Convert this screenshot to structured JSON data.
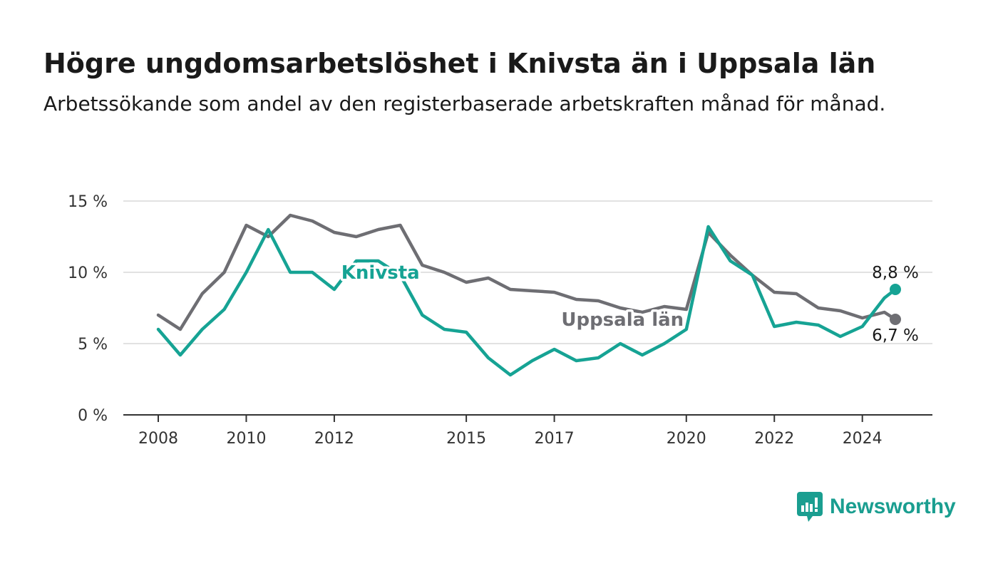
{
  "header": {
    "title": "Högre ungdomsarbetslöshet i Knivsta än i Uppsala län",
    "subtitle": "Arbetssökande som andel av den registerbaserade arbetskraften månad för månad."
  },
  "brand": {
    "name": "Newsworthy",
    "icon": "newsworthy-logo-icon",
    "color": "#1a9e90"
  },
  "chart_data": {
    "type": "line",
    "ylim": [
      0,
      15
    ],
    "yticks": [
      0,
      5,
      10,
      15
    ],
    "ytick_labels": [
      "0 %",
      "5 %",
      "10 %",
      "15 %"
    ],
    "xticks": [
      2008,
      2010,
      2012,
      2015,
      2017,
      2020,
      2022,
      2024
    ],
    "xtick_labels": [
      "2008",
      "2010",
      "2012",
      "2015",
      "2017",
      "2020",
      "2022",
      "2024"
    ],
    "grid": "horizontal",
    "series": [
      {
        "name": "Uppsala län",
        "color": "#6e6e73",
        "end_label": "6,7 %",
        "x": [
          2008.0,
          2008.5,
          2009.0,
          2009.5,
          2010.0,
          2010.5,
          2011.0,
          2011.5,
          2012.0,
          2012.5,
          2013.0,
          2013.5,
          2014.0,
          2014.5,
          2015.0,
          2015.5,
          2016.0,
          2016.5,
          2017.0,
          2017.5,
          2018.0,
          2018.5,
          2019.0,
          2019.5,
          2020.0,
          2020.5,
          2021.0,
          2021.5,
          2022.0,
          2022.5,
          2023.0,
          2023.5,
          2024.0,
          2024.5,
          2024.75
        ],
        "y": [
          7.0,
          6.0,
          8.5,
          10.0,
          13.3,
          12.5,
          14.0,
          13.6,
          12.8,
          12.5,
          13.0,
          13.3,
          10.5,
          10.0,
          9.3,
          9.6,
          8.8,
          8.7,
          8.6,
          8.1,
          8.0,
          7.5,
          7.2,
          7.6,
          7.4,
          12.8,
          11.2,
          9.8,
          8.6,
          8.5,
          7.5,
          7.3,
          6.8,
          7.2,
          6.7
        ]
      },
      {
        "name": "Knivsta",
        "color": "#16a394",
        "end_label": "8,8 %",
        "x": [
          2008.0,
          2008.5,
          2009.0,
          2009.5,
          2010.0,
          2010.5,
          2011.0,
          2011.5,
          2012.0,
          2012.5,
          2013.0,
          2013.5,
          2014.0,
          2014.5,
          2015.0,
          2015.5,
          2016.0,
          2016.5,
          2017.0,
          2017.5,
          2018.0,
          2018.5,
          2019.0,
          2019.5,
          2020.0,
          2020.5,
          2021.0,
          2021.5,
          2022.0,
          2022.5,
          2023.0,
          2023.5,
          2024.0,
          2024.5,
          2024.75
        ],
        "y": [
          6.0,
          4.2,
          6.0,
          7.4,
          10.0,
          13.0,
          10.0,
          10.0,
          8.8,
          10.8,
          10.8,
          9.8,
          7.0,
          6.0,
          5.8,
          4.0,
          2.8,
          3.8,
          4.6,
          3.8,
          4.0,
          5.0,
          4.2,
          5.0,
          6.0,
          13.2,
          10.8,
          9.8,
          6.2,
          6.5,
          6.3,
          5.5,
          6.2,
          8.2,
          8.8
        ]
      }
    ]
  }
}
